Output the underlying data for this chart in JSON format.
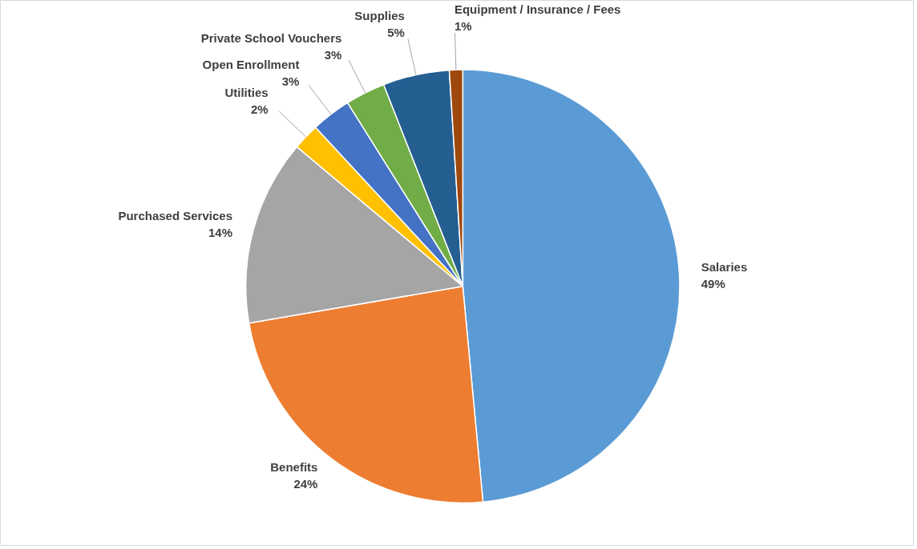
{
  "chart_data": {
    "type": "pie",
    "categories": [
      "Salaries",
      "Benefits",
      "Purchased Services",
      "Utilities",
      "Open Enrollment",
      "Private School Vouchers",
      "Supplies",
      "Equipment / Insurance / Fees"
    ],
    "values": [
      49,
      24,
      14,
      2,
      3,
      3,
      5,
      1
    ],
    "colors": [
      "#5b9bd5",
      "#ed7d31",
      "#a5a5a5",
      "#ffc000",
      "#4472c4",
      "#70ad47",
      "#255e91",
      "#9e480e"
    ],
    "value_labels": [
      "49%",
      "24%",
      "14%",
      "2%",
      "3%",
      "3%",
      "5%",
      "1%"
    ]
  }
}
